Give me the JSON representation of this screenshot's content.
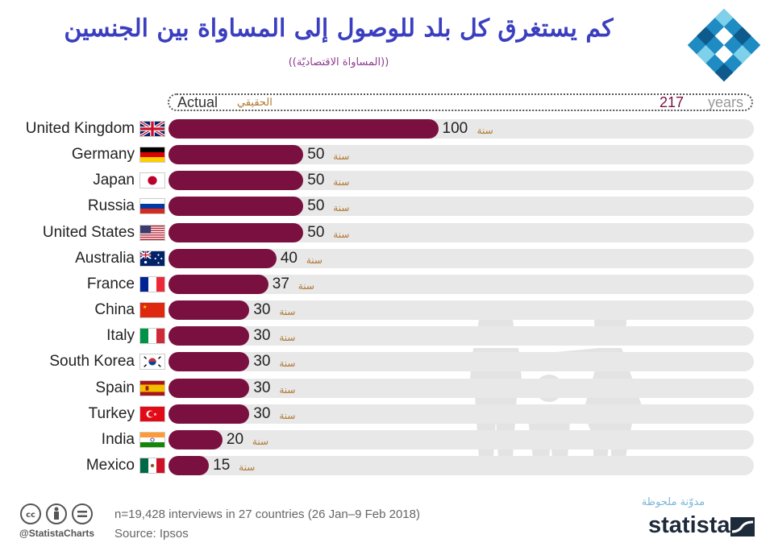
{
  "title": "كم يستغرق كل بلد للوصول إلى المساواة بين الجنسين",
  "subtitle": "((المساواة الاقتصاديّة))",
  "actual": {
    "label_en": "Actual",
    "label_ar": "الحقيقي",
    "value": "217",
    "unit": "years"
  },
  "unit_ar": "سنة",
  "colors": {
    "bar": "#7a1040",
    "track": "#e8e8e8",
    "title": "#3b3fbf",
    "unit": "#b07830"
  },
  "chart_data": {
    "type": "bar",
    "orientation": "horizontal",
    "title": "كم يستغرق كل بلد للوصول إلى المساواة بين الجنسين",
    "subtitle": "((المساواة الاقتصاديّة))",
    "unit": "years",
    "xlim": [
      0,
      217
    ],
    "reference": {
      "label": "Actual",
      "value": 217
    },
    "categories": [
      "United Kingdom",
      "Germany",
      "Japan",
      "Russia",
      "United States",
      "Australia",
      "France",
      "China",
      "Italy",
      "South Korea",
      "Spain",
      "Turkey",
      "India",
      "Mexico"
    ],
    "values": [
      100,
      50,
      50,
      50,
      50,
      40,
      37,
      30,
      30,
      30,
      30,
      30,
      20,
      15
    ]
  },
  "watermark": "مدوّنة ملحوظة",
  "footer": {
    "handle": "@StatistaCharts",
    "note": "n=19,428 interviews in 27 countries (26 Jan–9 Feb 2018)",
    "source": "Source: Ipsos",
    "brand": "statista"
  }
}
